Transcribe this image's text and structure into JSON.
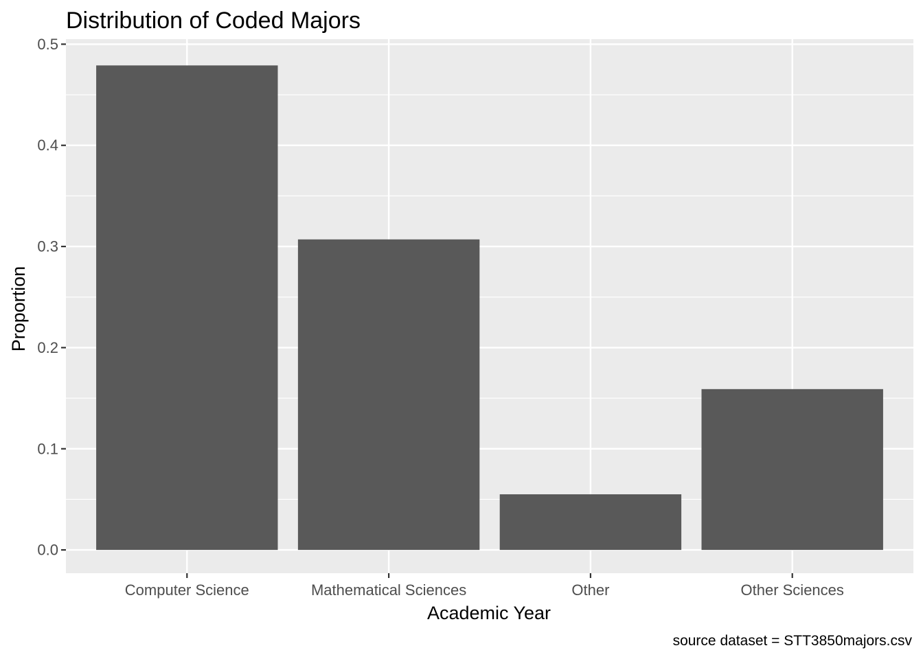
{
  "chart_data": {
    "type": "bar",
    "title": "Distribution of Coded Majors",
    "xlabel": "Academic Year",
    "ylabel": "Proportion",
    "caption": "source dataset = STT3850majors.csv",
    "categories": [
      "Computer Science",
      "Mathematical Sciences",
      "Other",
      "Other Sciences"
    ],
    "values": [
      0.479,
      0.307,
      0.055,
      0.159
    ],
    "ylim": [
      -0.023,
      0.505
    ],
    "yticks": [
      0.0,
      0.1,
      0.2,
      0.3,
      0.4,
      0.5
    ],
    "ytick_labels": [
      "0.0",
      "0.1",
      "0.2",
      "0.3",
      "0.4",
      "0.5"
    ],
    "grid": true,
    "legend": "none",
    "colors": {
      "bar": "#595959",
      "panel": "#ebebeb",
      "grid": "#ffffff",
      "tick": "#333333"
    }
  }
}
